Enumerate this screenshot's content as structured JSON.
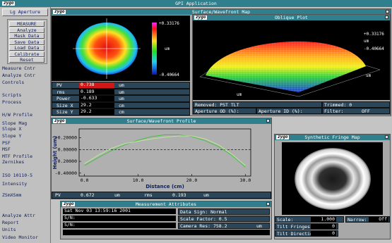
{
  "app": {
    "logo": "zygo",
    "title": "GPI Application"
  },
  "sidebar": {
    "top_button": "Lg Aperture",
    "buttons": [
      "MEASURE",
      "Analyze",
      "Mask Data",
      "Save Data",
      "Load Data",
      "Calibrate",
      "Reset"
    ],
    "menu": [
      "Measure Cntr",
      "Analyze Cntr",
      "Controls",
      "Scripts",
      "Process",
      "H/W Profile",
      "Slope Mag",
      "Slope X",
      "Slope Y",
      "PSF",
      "MSF",
      "MTF Profile",
      "Zernikes",
      "ISO 10110-5",
      "Intensity",
      "ZSmXSmm",
      "Analyze Attr",
      "Report",
      "Units",
      "Video Monitor"
    ]
  },
  "surface_map": {
    "logo": "zygo",
    "title": "Surface/Wavefront Map",
    "colorbar": {
      "max": "+0.33176",
      "unit": "um",
      "min": "-0.40664"
    },
    "stats": [
      [
        "PV",
        "0.738",
        "um"
      ],
      [
        "rms",
        "0.189",
        "um"
      ],
      [
        "Power",
        "-0.633",
        "um"
      ],
      [
        "Size X",
        "29.2",
        "cm"
      ],
      [
        "Size Y",
        "29.2",
        "cm"
      ]
    ]
  },
  "oblique_plot": {
    "logo": "zygo",
    "title": "Oblique Plot",
    "colorbar": {
      "max": "+0.33176",
      "unit": "um",
      "min": "-0.40664"
    },
    "axis_units": [
      "um",
      "um"
    ],
    "settings": {
      "removed": "Removed: PST TLT",
      "trimmed": "Trimmed: 0",
      "aperture_od": "Aperture OD (%):",
      "aperture_id": "Aperture ID (%):",
      "filter_label": "Filter:",
      "filter_value": "OFF"
    }
  },
  "profile": {
    "logo": "zygo",
    "title": "Surface/Wavefront Profile",
    "type": "line",
    "ylabel": "Height (um)",
    "xlabel": "Distance (cm)",
    "xlim": [
      -1,
      31
    ],
    "ylim": [
      -0.45,
      0.35
    ],
    "xticks": [
      {
        "value": 0,
        "label": "0.0"
      },
      {
        "value": 10,
        "label": "10.0"
      },
      {
        "value": 20,
        "label": "20.0"
      },
      {
        "value": 30,
        "label": "30.0"
      }
    ],
    "yticks": [
      {
        "value": 0.2,
        "label": "+0.20000"
      },
      {
        "value": 0,
        "label": "0.00000"
      },
      {
        "value": -0.2,
        "label": "-0.20000"
      },
      {
        "value": -0.4,
        "label": "-0.40000"
      }
    ],
    "x": [
      0,
      2.5,
      5,
      7.5,
      10,
      12.5,
      15,
      17.5,
      20,
      22.5,
      25,
      27.5,
      30
    ],
    "series": [
      {
        "color": "#3cc03c",
        "values": [
          -0.27,
          -0.14,
          -0.02,
          0.08,
          0.16,
          0.22,
          0.25,
          0.25,
          0.22,
          0.15,
          0.05,
          -0.1,
          -0.3
        ]
      },
      {
        "color": "#c0ec98",
        "values": [
          -0.24,
          -0.1,
          0.02,
          0.1,
          0.14,
          0.18,
          0.21,
          0.23,
          0.23,
          0.18,
          0.08,
          -0.08,
          -0.27
        ]
      }
    ],
    "stats": [
      "PV",
      "0.672",
      "um",
      "rms",
      "0.193",
      "um"
    ]
  },
  "fringe_map": {
    "logo": "zygo",
    "title": "Synthetic Fringe Map",
    "settings": [
      [
        "Scale:",
        "1.000"
      ],
      [
        "Narrow:",
        "Off"
      ],
      [
        "Tilt Fringes:",
        "0"
      ],
      [
        "Tilt Direction:",
        "0"
      ]
    ]
  },
  "measurement": {
    "logo": "zygo",
    "title": "Measurement Attributes",
    "date": "Sat Nov 03 13:59:16 2001",
    "data_sign": [
      "Data Sign:",
      "Normal"
    ],
    "sn1": "S/N:",
    "scale_factor": [
      "Scale Factor:",
      "0.5"
    ],
    "sn2": "S/N:",
    "camera_res": [
      "Camera Res:",
      "758.2",
      "um"
    ]
  }
}
